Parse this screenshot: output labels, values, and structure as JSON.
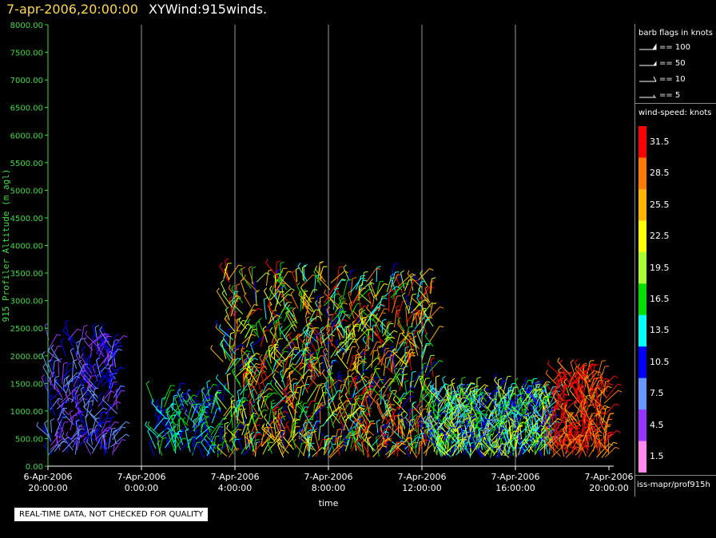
{
  "header": {
    "timestamp": "7-apr-2006,20:00:00",
    "name": "XYWind:915winds."
  },
  "legend": {
    "barb_title": "barb flags in knots",
    "barbs": [
      {
        "label": "== 100",
        "icon": "pennant-barb-icon"
      },
      {
        "label": "== 50",
        "icon": "half-pennant-barb-icon"
      },
      {
        "label": "== 10",
        "icon": "full-barb-icon"
      },
      {
        "label": "== 5",
        "icon": "half-barb-icon"
      }
    ],
    "speed_title": "wind-speed: knots",
    "speed_levels": [
      {
        "label": "31.5",
        "color": "#ff0000"
      },
      {
        "label": "28.5",
        "color": "#ff7a00"
      },
      {
        "label": "25.5",
        "color": "#ffb400"
      },
      {
        "label": "22.5",
        "color": "#ffff00"
      },
      {
        "label": "19.5",
        "color": "#a8ff30"
      },
      {
        "label": "16.5",
        "color": "#00e000"
      },
      {
        "label": "13.5",
        "color": "#00ffff"
      },
      {
        "label": "10.5",
        "color": "#0000ff"
      },
      {
        "label": "7.5",
        "color": "#6699ff"
      },
      {
        "label": "4.5",
        "color": "#9933ff"
      },
      {
        "label": "1.5",
        "color": "#ff88ee"
      }
    ],
    "source": "iss-mapr/prof915h"
  },
  "disclaimer": "REAL-TIME DATA, NOT CHECKED FOR QUALITY",
  "chart_data": {
    "type": "scatter",
    "title": "",
    "xlabel": "time",
    "ylabel": "915 Profiler Altitude (m agl)",
    "ylim": [
      0,
      8000
    ],
    "xlim_hours": [
      0,
      24
    ],
    "yticks": [
      "0.00",
      "500.00",
      "1000.00",
      "1500.00",
      "2000.00",
      "2500.00",
      "3000.00",
      "3500.00",
      "4000.00",
      "4500.00",
      "5000.00",
      "5500.00",
      "6000.00",
      "6500.00",
      "7000.00",
      "7500.00",
      "8000.00"
    ],
    "xticks": [
      {
        "date": "6-Apr-2006",
        "time": "20:00:00"
      },
      {
        "date": "7-Apr-2006",
        "time": "0:00:00"
      },
      {
        "date": "7-Apr-2006",
        "time": "4:00:00"
      },
      {
        "date": "7-Apr-2006",
        "time": "8:00:00"
      },
      {
        "date": "7-Apr-2006",
        "time": "12:00:00"
      },
      {
        "date": "7-Apr-2006",
        "time": "16:00:00"
      },
      {
        "date": "7-Apr-2006",
        "time": "20:00:00"
      }
    ],
    "grid": "vertical",
    "series": [
      {
        "x_range": [
          "6-Apr-2006 20:00",
          "6-Apr-2006 23:00"
        ],
        "altitude_range": [
          200,
          2300
        ],
        "speed_range": [
          3,
          12
        ]
      },
      {
        "x_range": [
          "7-Apr-2006 0:30",
          "7-Apr-2006 3:30"
        ],
        "altitude_range": [
          150,
          1200
        ],
        "speed_range": [
          8,
          18
        ]
      },
      {
        "x_range": [
          "7-Apr-2006 3:30",
          "7-Apr-2006 12:30"
        ],
        "altitude_range": [
          150,
          3400
        ],
        "speed_range": [
          10,
          33
        ]
      },
      {
        "x_range": [
          "7-Apr-2006 12:30",
          "7-Apr-2006 17:30"
        ],
        "altitude_range": [
          150,
          1300
        ],
        "speed_range": [
          7,
          24
        ]
      },
      {
        "x_range": [
          "7-Apr-2006 17:30",
          "7-Apr-2006 20:00"
        ],
        "altitude_range": [
          150,
          1650
        ],
        "speed_range": [
          26,
          34
        ]
      }
    ]
  }
}
